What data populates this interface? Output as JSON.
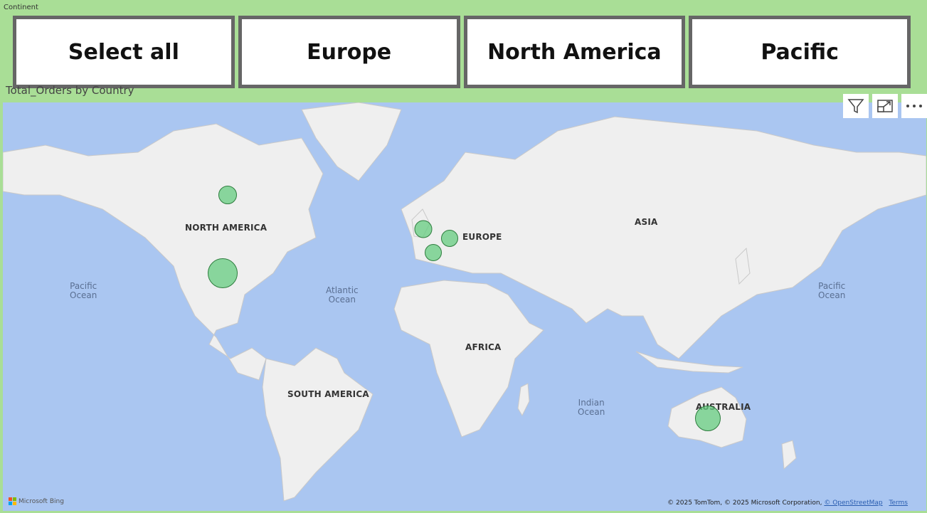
{
  "slicer": {
    "title": "Continent",
    "options": [
      "Select all",
      "Europe",
      "North America",
      "Pacific"
    ]
  },
  "map": {
    "title": "Total_Orders by Country",
    "continent_labels": {
      "north_america": "NORTH AMERICA",
      "europe": "EUROPE",
      "asia": "ASIA",
      "africa": "AFRICA",
      "south_america": "SOUTH AMERICA",
      "australia": "AUSTRALIA"
    },
    "ocean_labels": {
      "pacific_west": "Pacific\nOcean",
      "atlantic": "Atlantic\nOcean",
      "indian": "Indian\nOcean",
      "pacific_east": "Pacific\nOcean"
    },
    "bubble_color": "#66cc80",
    "ocean_color": "#aac6f1",
    "land_color": "#efefef"
  },
  "toolbar": {
    "filter_icon": "filter-icon",
    "focus_icon": "focus-mode-icon",
    "more_icon": "more-options-icon"
  },
  "footer": {
    "bing_logo": "Microsoft Bing",
    "attribution_text": "© 2025 TomTom, © 2025 Microsoft Corporation,",
    "osm_link": "© OpenStreetMap",
    "terms_link": "Terms"
  }
}
